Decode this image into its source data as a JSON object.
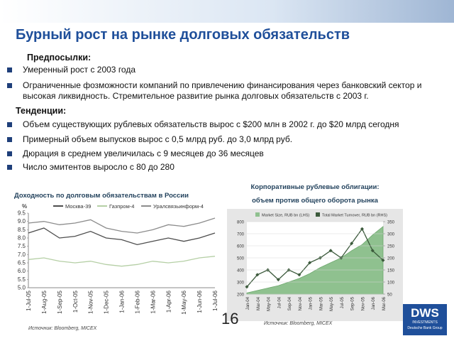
{
  "title": "Бурный рост на рынке долговых обязательств",
  "sections": [
    {
      "heading": "Предпосылки:",
      "items": [
        "Умеренный рост с 2003 года",
        "Ограниченные фозможности компаний по привлечению финансирования через банковский сектор и высокая ликвидность. Стремительное развитие рынка долговых обязательств с 2003 г."
      ]
    },
    {
      "heading": "Тенденции:",
      "items": [
        "Объем существующих рублевых обязательств вырос с $200 млн в 2002 г. до $20 млрд сегодня",
        "Примерный объем выпусков вырос с 0,5 млрд руб. до 3,0 млрд руб.",
        "Дюрация в среднем увеличилась с 9 месяцев до 36 месяцев",
        "Число эмитентов выросло с 80 до 280"
      ]
    }
  ],
  "chart_data": [
    {
      "type": "line",
      "title": "Доходность по долговым обязательствам в России",
      "ylabel": "%",
      "categories": [
        "1-Jul-05",
        "1-Aug-05",
        "1-Sep-05",
        "1-Oct-05",
        "1-Nov-05",
        "1-Dec-05",
        "1-Jan-06",
        "1-Feb-06",
        "1-Mar-06",
        "1-Apr-06",
        "1-May-06",
        "1-Jun-06",
        "1-Jul-06"
      ],
      "series": [
        {
          "name": "Москва-39",
          "color": "#4d4d4d",
          "values": [
            8.3,
            8.6,
            8.0,
            8.1,
            8.4,
            8.0,
            7.9,
            7.6,
            7.8,
            8.0,
            7.8,
            8.0,
            8.3
          ]
        },
        {
          "name": "Газпром-4",
          "color": "#b5cfa5",
          "values": [
            6.7,
            6.8,
            6.6,
            6.5,
            6.6,
            6.4,
            6.3,
            6.4,
            6.6,
            6.5,
            6.6,
            6.8,
            6.9
          ]
        },
        {
          "name": "Уралсвязьинформ-4",
          "color": "#8c8c8c",
          "values": [
            8.9,
            9.0,
            8.8,
            8.9,
            9.1,
            8.6,
            8.4,
            8.3,
            8.5,
            8.8,
            8.7,
            8.9,
            9.2
          ]
        }
      ],
      "ylim": [
        5,
        9.5
      ],
      "yticks": [
        {
          "value": 5,
          "label": "5.0"
        },
        5.5,
        {
          "value": 6,
          "label": "6.0"
        },
        6.5,
        {
          "value": 7,
          "label": "7.0"
        },
        7.5,
        {
          "value": 8,
          "label": "8.0"
        },
        8.5,
        {
          "value": 9,
          "label": "9.0"
        },
        9.5
      ],
      "grid": false,
      "source": "Источник: Bloomberg, MICEX"
    },
    {
      "type": "area",
      "title": "Корпоративные рублевые облигации:",
      "subtitle": "объем против общего оборота рынка",
      "categories": [
        "Jan-04",
        "Mar-04",
        "May-04",
        "Jul-04",
        "Sep-04",
        "Nov-04",
        "Jan-05",
        "Mar-05",
        "May-05",
        "Jul-05",
        "Sep-05",
        "Nov-05",
        "Jan-06",
        "Mar-06"
      ],
      "series": [
        {
          "name": "Market Size, RUB bn (LHS)",
          "color": "#8fc18f",
          "values": [
            210,
            230,
            250,
            270,
            300,
            330,
            370,
            420,
            460,
            500,
            560,
            610,
            690,
            760
          ]
        },
        {
          "name": "Total Market Turnover, RUB bn (RHS)",
          "color": "#3c5a3c",
          "type": "line",
          "axis": "y2",
          "values": [
            80,
            130,
            150,
            110,
            150,
            130,
            180,
            200,
            230,
            200,
            260,
            320,
            230,
            190
          ]
        }
      ],
      "ylim": [
        200,
        800
      ],
      "yticks": [
        200,
        300,
        400,
        500,
        600,
        700,
        800
      ],
      "y2lim": [
        50,
        350
      ],
      "y2ticks": [
        50,
        100,
        150,
        200,
        250,
        300,
        350
      ],
      "grid": true,
      "source": "Источник: Bloomberg, MICEX"
    }
  ],
  "page_number": "16",
  "logo": {
    "name": "DWS",
    "line1": "INVESTMENTS",
    "line2": "Deutsche Bank Group"
  }
}
